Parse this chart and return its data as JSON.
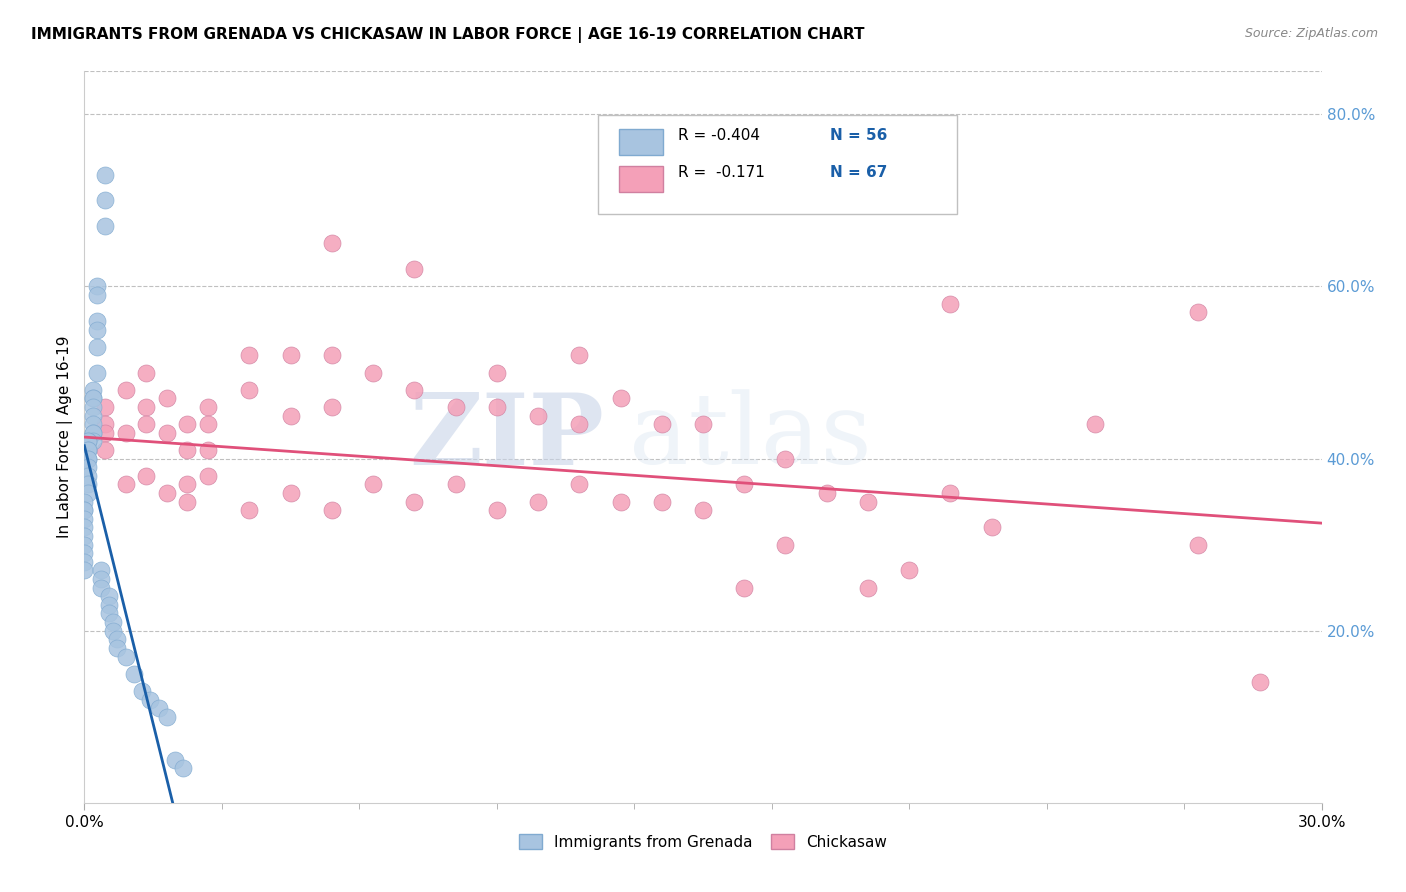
{
  "title": "IMMIGRANTS FROM GRENADA VS CHICKASAW IN LABOR FORCE | AGE 16-19 CORRELATION CHART",
  "source": "Source: ZipAtlas.com",
  "ylabel": "In Labor Force | Age 16-19",
  "right_yticks": [
    "80.0%",
    "60.0%",
    "40.0%",
    "20.0%"
  ],
  "right_ytick_vals": [
    0.8,
    0.6,
    0.4,
    0.2
  ],
  "xlim": [
    0.0,
    0.3
  ],
  "ylim": [
    0.0,
    0.85
  ],
  "blue_color": "#a8c4e0",
  "pink_color": "#f4a0b8",
  "blue_line_color": "#1a5fa8",
  "pink_line_color": "#e0507a",
  "watermark_zip": "ZIP",
  "watermark_atlas": "atlas",
  "blue_scatter_x": [
    0.005,
    0.005,
    0.005,
    0.003,
    0.003,
    0.003,
    0.003,
    0.003,
    0.003,
    0.002,
    0.002,
    0.002,
    0.002,
    0.002,
    0.002,
    0.002,
    0.002,
    0.002,
    0.001,
    0.001,
    0.001,
    0.001,
    0.001,
    0.001,
    0.001,
    0.001,
    0.001,
    0.001,
    0.0,
    0.0,
    0.0,
    0.0,
    0.0,
    0.0,
    0.0,
    0.0,
    0.0,
    0.0,
    0.004,
    0.004,
    0.004,
    0.006,
    0.006,
    0.006,
    0.007,
    0.007,
    0.008,
    0.008,
    0.01,
    0.012,
    0.014,
    0.016,
    0.018,
    0.02,
    0.022,
    0.024
  ],
  "blue_scatter_y": [
    0.73,
    0.7,
    0.67,
    0.6,
    0.59,
    0.56,
    0.55,
    0.53,
    0.5,
    0.48,
    0.47,
    0.47,
    0.46,
    0.45,
    0.44,
    0.43,
    0.43,
    0.42,
    0.42,
    0.42,
    0.41,
    0.41,
    0.4,
    0.4,
    0.39,
    0.38,
    0.37,
    0.36,
    0.35,
    0.34,
    0.34,
    0.33,
    0.32,
    0.31,
    0.3,
    0.29,
    0.28,
    0.27,
    0.27,
    0.26,
    0.25,
    0.24,
    0.23,
    0.22,
    0.21,
    0.2,
    0.19,
    0.18,
    0.17,
    0.15,
    0.13,
    0.12,
    0.11,
    0.1,
    0.05,
    0.04
  ],
  "pink_scatter_x": [
    0.005,
    0.005,
    0.005,
    0.005,
    0.01,
    0.01,
    0.01,
    0.015,
    0.015,
    0.015,
    0.015,
    0.02,
    0.02,
    0.02,
    0.025,
    0.025,
    0.025,
    0.025,
    0.03,
    0.03,
    0.03,
    0.03,
    0.04,
    0.04,
    0.04,
    0.05,
    0.05,
    0.05,
    0.06,
    0.06,
    0.06,
    0.06,
    0.07,
    0.07,
    0.08,
    0.08,
    0.08,
    0.09,
    0.09,
    0.1,
    0.1,
    0.1,
    0.11,
    0.11,
    0.12,
    0.12,
    0.12,
    0.13,
    0.13,
    0.14,
    0.14,
    0.15,
    0.15,
    0.16,
    0.16,
    0.17,
    0.17,
    0.18,
    0.19,
    0.19,
    0.2,
    0.21,
    0.21,
    0.22,
    0.245,
    0.27,
    0.27,
    0.285
  ],
  "pink_scatter_y": [
    0.46,
    0.44,
    0.43,
    0.41,
    0.48,
    0.43,
    0.37,
    0.5,
    0.46,
    0.44,
    0.38,
    0.47,
    0.43,
    0.36,
    0.44,
    0.41,
    0.37,
    0.35,
    0.46,
    0.44,
    0.41,
    0.38,
    0.52,
    0.48,
    0.34,
    0.52,
    0.45,
    0.36,
    0.65,
    0.52,
    0.46,
    0.34,
    0.5,
    0.37,
    0.62,
    0.48,
    0.35,
    0.46,
    0.37,
    0.5,
    0.46,
    0.34,
    0.45,
    0.35,
    0.52,
    0.44,
    0.37,
    0.47,
    0.35,
    0.44,
    0.35,
    0.44,
    0.34,
    0.37,
    0.25,
    0.4,
    0.3,
    0.36,
    0.35,
    0.25,
    0.27,
    0.58,
    0.36,
    0.32,
    0.44,
    0.57,
    0.3,
    0.14
  ],
  "blue_line_x": [
    0.0,
    0.024
  ],
  "blue_line_y": [
    0.415,
    -0.05
  ],
  "pink_line_x": [
    0.0,
    0.3
  ],
  "pink_line_y": [
    0.425,
    0.325
  ]
}
